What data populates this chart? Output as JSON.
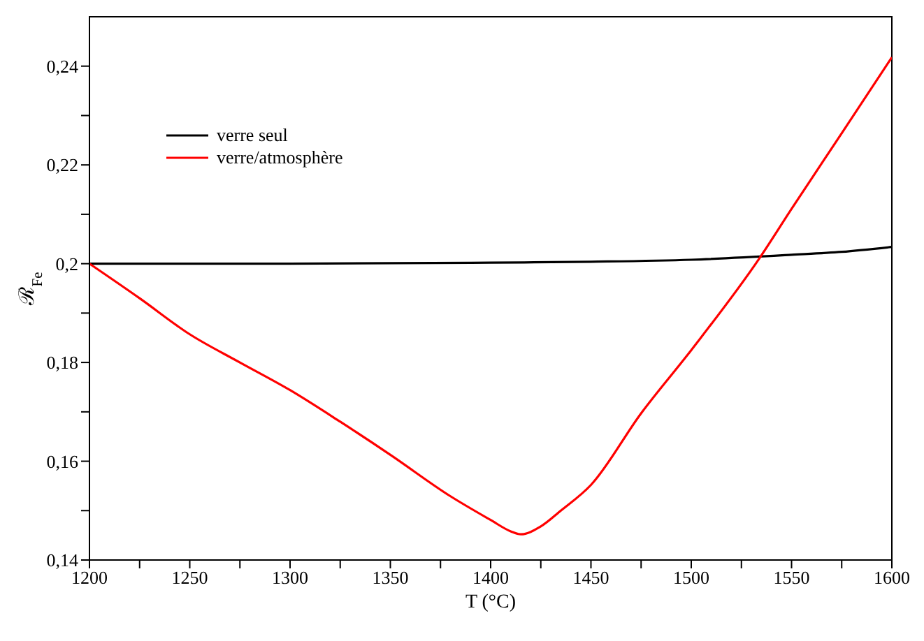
{
  "chart_data": {
    "type": "line",
    "xlabel": "T (°C)",
    "ylabel": "ℛ$_{Fe}$",
    "xlim": [
      1200,
      1600
    ],
    "xticks": [
      1200,
      {
        "value": 1225,
        "label": null
      },
      1250,
      {
        "value": 1275,
        "label": null
      },
      1300,
      {
        "value": 1325,
        "label": null
      },
      1350,
      {
        "value": 1375,
        "label": null
      },
      1400,
      {
        "value": 1425,
        "label": null
      },
      1450,
      {
        "value": 1475,
        "label": null
      },
      1500,
      {
        "value": 1525,
        "label": null
      },
      1550,
      {
        "value": 1575,
        "label": null
      },
      1600
    ],
    "ylim": [
      0.14,
      0.25
    ],
    "yticks": [
      {
        "value": 0.14,
        "label": "0,14"
      },
      {
        "value": 0.15,
        "label": null
      },
      {
        "value": 0.16,
        "label": "0,16"
      },
      {
        "value": 0.17,
        "label": null
      },
      {
        "value": 0.18,
        "label": "0,18"
      },
      {
        "value": 0.19,
        "label": null
      },
      {
        "value": 0.2,
        "label": "0,2"
      },
      {
        "value": 0.21,
        "label": null
      },
      {
        "value": 0.22,
        "label": "0,22"
      },
      {
        "value": 0.23,
        "label": null
      },
      {
        "value": 0.24,
        "label": "0,24"
      }
    ],
    "legend": "top left",
    "marker": "none",
    "line_style": "solid",
    "series": [
      {
        "name": "verre seul",
        "color": "#000000",
        "x": [
          1200,
          1300,
          1400,
          1450,
          1500,
          1550,
          1575,
          1600
        ],
        "values": [
          0.2,
          0.2,
          0.2002,
          0.2004,
          0.2008,
          0.2018,
          0.2024,
          0.2034
        ]
      },
      {
        "name": "verre/atmosphère",
        "color": "#ff0000",
        "x": [
          1200,
          1225,
          1250,
          1275,
          1300,
          1325,
          1350,
          1380,
          1400,
          1410,
          1415,
          1425,
          1435,
          1450,
          1475,
          1500,
          1534,
          1550,
          1575,
          1600
        ],
        "values": [
          0.2,
          0.193,
          0.1857,
          0.18,
          0.1744,
          0.168,
          0.1613,
          0.1529,
          0.1481,
          0.1458,
          0.1452,
          0.1468,
          0.15,
          0.1552,
          0.1697,
          0.1825,
          0.2011,
          0.2111,
          0.2264,
          0.2418
        ]
      }
    ]
  }
}
